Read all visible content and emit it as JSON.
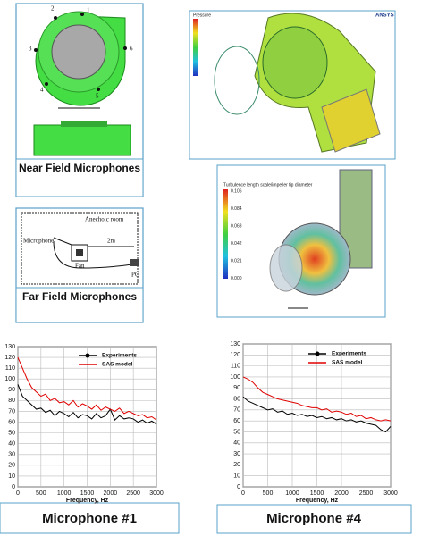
{
  "panels": {
    "near_field": {
      "label": "Near Field Microphones",
      "mic_numbers": [
        "1",
        "2",
        "3",
        "4",
        "5",
        "6"
      ]
    },
    "far_field": {
      "label": "Far Field Microphones",
      "room": "Anechoic room",
      "microphone": "Microphone",
      "distance": "2m",
      "fan": "Fan",
      "pc": "PC"
    },
    "pressure": {
      "brand": "ANSYS",
      "legend_title": "Pressure"
    },
    "turbulence": {
      "title": "Turbulence length scale/impeller tip diameter",
      "legend": [
        "0.106",
        "0.084",
        "0.063",
        "0.042",
        "0.021",
        "0.000"
      ]
    }
  },
  "chart_data": [
    {
      "type": "line",
      "caption": "Microphone #1",
      "x_label": "Frequency, Hz",
      "x": [
        0,
        100,
        200,
        300,
        400,
        500,
        600,
        700,
        800,
        900,
        1000,
        1100,
        1200,
        1300,
        1400,
        1500,
        1600,
        1700,
        1800,
        1900,
        2000,
        2100,
        2200,
        2300,
        2400,
        2500,
        2600,
        2700,
        2800,
        2900,
        3000
      ],
      "series": [
        {
          "name": "Experiments",
          "color": "#000000",
          "values": [
            95,
            84,
            80,
            76,
            72,
            73,
            69,
            71,
            66,
            70,
            68,
            65,
            69,
            64,
            67,
            66,
            63,
            68,
            64,
            66,
            72,
            62,
            66,
            63,
            64,
            63,
            60,
            62,
            59,
            61,
            58
          ]
        },
        {
          "name": "SAS model",
          "color": "#e00000",
          "values": [
            120,
            110,
            100,
            92,
            88,
            84,
            86,
            80,
            82,
            78,
            79,
            76,
            80,
            74,
            77,
            75,
            72,
            76,
            71,
            74,
            72,
            70,
            73,
            68,
            70,
            68,
            66,
            67,
            64,
            65,
            62
          ]
        }
      ],
      "xlim": [
        0,
        3000
      ],
      "xticks": [
        0,
        500,
        1000,
        1500,
        2000,
        2500,
        3000
      ],
      "ylim": [
        0,
        130
      ],
      "yticks": [
        0,
        10,
        20,
        30,
        40,
        50,
        60,
        70,
        80,
        90,
        100,
        110,
        120,
        130
      ],
      "grid": true
    },
    {
      "type": "line",
      "caption": "Microphone #4",
      "x_label": "Frequency, Hz",
      "x": [
        0,
        100,
        200,
        300,
        400,
        500,
        600,
        700,
        800,
        900,
        1000,
        1100,
        1200,
        1300,
        1400,
        1500,
        1600,
        1700,
        1800,
        1900,
        2000,
        2100,
        2200,
        2300,
        2400,
        2500,
        2600,
        2700,
        2800,
        2900,
        3000
      ],
      "series": [
        {
          "name": "Experiments",
          "color": "#000000",
          "values": [
            82,
            78,
            76,
            74,
            72,
            70,
            71,
            68,
            69,
            66,
            67,
            65,
            66,
            64,
            65,
            63,
            64,
            62,
            63,
            61,
            62,
            60,
            61,
            59,
            60,
            58,
            57,
            56,
            52,
            50,
            55
          ]
        },
        {
          "name": "SAS model",
          "color": "#e00000",
          "values": [
            100,
            98,
            95,
            90,
            86,
            84,
            82,
            80,
            79,
            78,
            77,
            76,
            74,
            73,
            72,
            72,
            70,
            71,
            68,
            69,
            68,
            66,
            67,
            64,
            65,
            62,
            63,
            61,
            60,
            61,
            60
          ]
        }
      ],
      "xlim": [
        0,
        3000
      ],
      "xticks": [
        0,
        500,
        1000,
        1500,
        2000,
        2500,
        3000
      ],
      "ylim": [
        0,
        130
      ],
      "yticks": [
        0,
        10,
        20,
        30,
        40,
        50,
        60,
        70,
        80,
        90,
        100,
        110,
        120,
        130
      ],
      "grid": true
    }
  ]
}
